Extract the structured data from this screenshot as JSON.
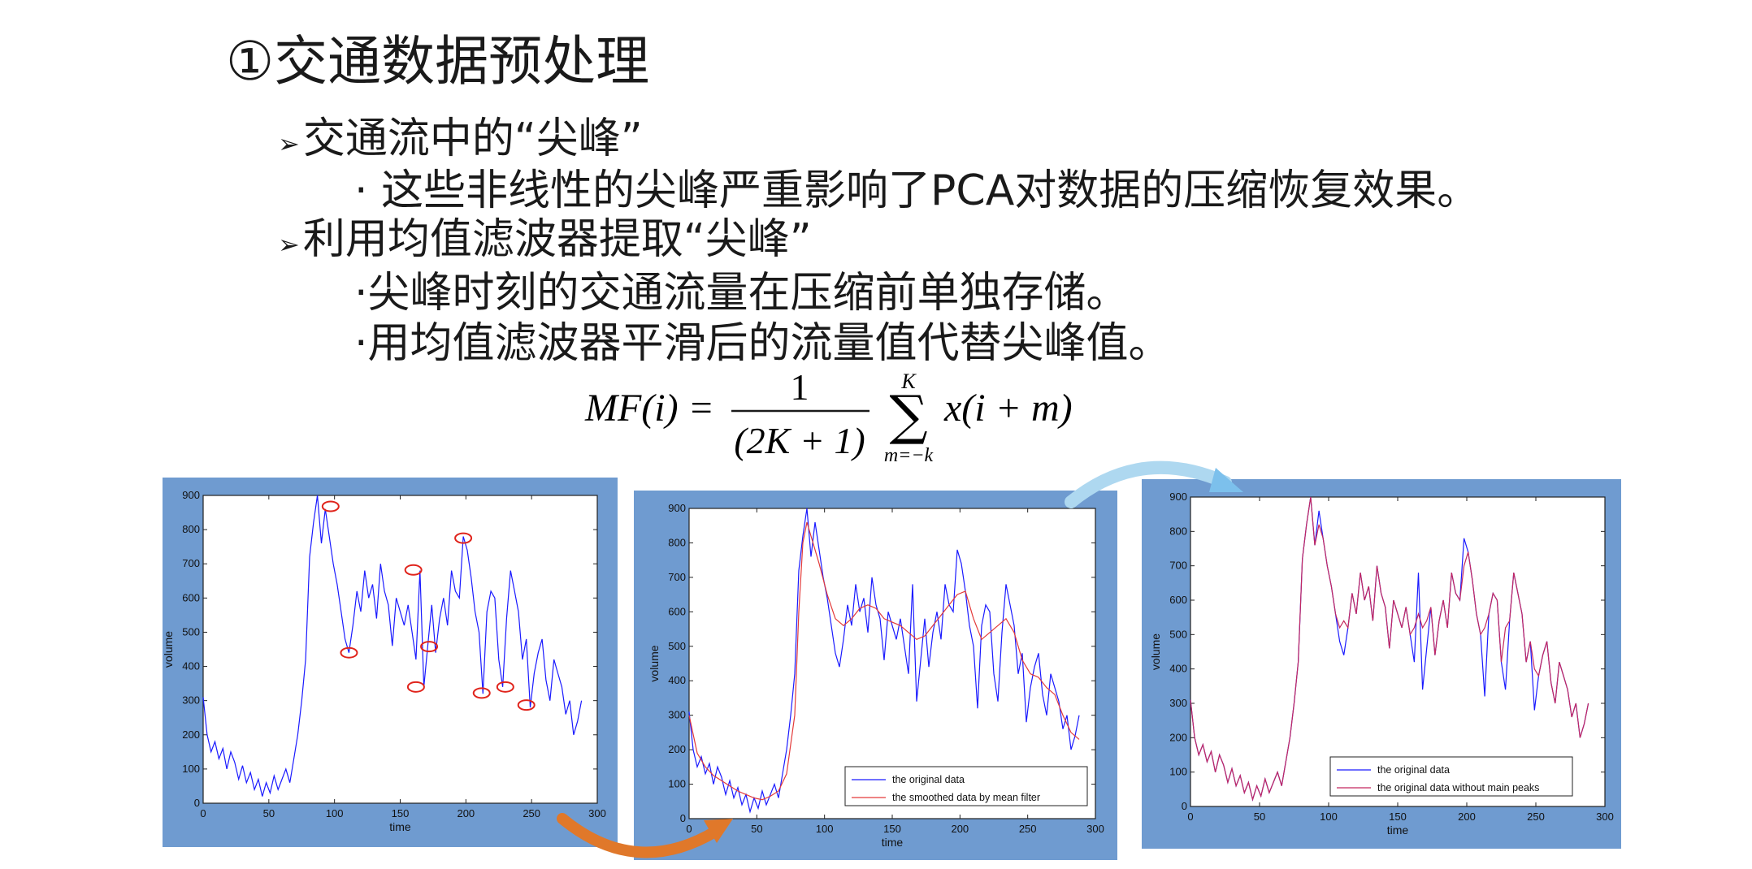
{
  "slide": {
    "heading": "①交通数据预处理",
    "bullet1": "交通流中的“尖峰”",
    "sub1": "· 这些非线性的尖峰严重影响了PCA对数据的压缩恢复效果。",
    "bullet2": "利用均值滤波器提取“尖峰”",
    "sub2": "·尖峰时刻的交通流量在压缩前单独存储。",
    "sub3": "·用均值滤波器平滑后的流量值代替尖峰值。",
    "bullet_marker": "➢"
  },
  "formula": {
    "lhs": "MF(i) =",
    "numerator": "1",
    "denominator": "(2K + 1)",
    "upper": "K",
    "lower": "m=−k",
    "sigma": "∑",
    "term": "x(i + m)"
  },
  "colors": {
    "panel_bg": "#6f9bd0",
    "original": "#1a1aff",
    "smoothed": "#e33a3a",
    "no_peaks": "#c4285f",
    "peak_marker": "#e0241c",
    "arrow_orange": "#e0782a",
    "arrow_blue": "#aed8f0"
  },
  "chart_data": [
    {
      "type": "line",
      "xlabel": "time",
      "ylabel": "volume",
      "xlim": [
        0,
        300
      ],
      "ylim": [
        0,
        900
      ],
      "xticks": [
        0,
        50,
        100,
        150,
        200,
        250,
        300
      ],
      "yticks": [
        0,
        100,
        200,
        300,
        400,
        500,
        600,
        700,
        800,
        900
      ],
      "series": [
        {
          "color": "#1a1aff",
          "x": [
            0,
            3,
            6,
            9,
            12,
            15,
            18,
            21,
            24,
            27,
            30,
            33,
            36,
            39,
            42,
            45,
            48,
            51,
            54,
            57,
            60,
            63,
            66,
            69,
            72,
            75,
            78,
            81,
            84,
            87,
            90,
            93,
            96,
            99,
            102,
            105,
            108,
            111,
            114,
            117,
            120,
            123,
            126,
            129,
            132,
            135,
            138,
            141,
            144,
            147,
            150,
            153,
            156,
            159,
            162,
            165,
            168,
            171,
            174,
            177,
            180,
            183,
            186,
            189,
            192,
            195,
            198,
            201,
            204,
            207,
            210,
            213,
            216,
            219,
            222,
            225,
            228,
            231,
            234,
            237,
            240,
            243,
            246,
            249,
            252,
            255,
            258,
            261,
            264,
            267,
            270,
            273,
            276,
            279,
            282,
            285,
            288
          ],
          "y": [
            310,
            200,
            150,
            180,
            130,
            160,
            100,
            150,
            120,
            70,
            110,
            60,
            90,
            40,
            70,
            20,
            60,
            30,
            80,
            40,
            70,
            100,
            60,
            130,
            200,
            300,
            420,
            720,
            820,
            900,
            760,
            860,
            780,
            700,
            640,
            560,
            480,
            440,
            520,
            620,
            560,
            680,
            600,
            640,
            540,
            700,
            620,
            580,
            460,
            600,
            560,
            520,
            580,
            500,
            420,
            680,
            340,
            460,
            580,
            440,
            540,
            600,
            520,
            680,
            620,
            600,
            780,
            740,
            660,
            560,
            500,
            320,
            560,
            620,
            600,
            420,
            340,
            540,
            680,
            620,
            560,
            420,
            480,
            280,
            380,
            440,
            480,
            360,
            300,
            420,
            380,
            340,
            260,
            300,
            200,
            240,
            300
          ]
        }
      ],
      "peaks": [
        {
          "x": 97,
          "y": 868
        },
        {
          "x": 111,
          "y": 440
        },
        {
          "x": 160,
          "y": 682
        },
        {
          "x": 162,
          "y": 340
        },
        {
          "x": 172,
          "y": 458
        },
        {
          "x": 198,
          "y": 775
        },
        {
          "x": 212,
          "y": 322
        },
        {
          "x": 230,
          "y": 340
        },
        {
          "x": 246,
          "y": 287
        }
      ]
    },
    {
      "type": "line",
      "xlabel": "time",
      "ylabel": "volume",
      "xlim": [
        0,
        300
      ],
      "ylim": [
        0,
        900
      ],
      "xticks": [
        0,
        50,
        100,
        150,
        200,
        250,
        300
      ],
      "yticks": [
        0,
        100,
        200,
        300,
        400,
        500,
        600,
        700,
        800,
        900
      ],
      "legend": "bottom-right",
      "series": [
        {
          "name": "the original data",
          "color": "#1a1aff",
          "x": [
            0,
            3,
            6,
            9,
            12,
            15,
            18,
            21,
            24,
            27,
            30,
            33,
            36,
            39,
            42,
            45,
            48,
            51,
            54,
            57,
            60,
            63,
            66,
            69,
            72,
            75,
            78,
            81,
            84,
            87,
            90,
            93,
            96,
            99,
            102,
            105,
            108,
            111,
            114,
            117,
            120,
            123,
            126,
            129,
            132,
            135,
            138,
            141,
            144,
            147,
            150,
            153,
            156,
            159,
            162,
            165,
            168,
            171,
            174,
            177,
            180,
            183,
            186,
            189,
            192,
            195,
            198,
            201,
            204,
            207,
            210,
            213,
            216,
            219,
            222,
            225,
            228,
            231,
            234,
            237,
            240,
            243,
            246,
            249,
            252,
            255,
            258,
            261,
            264,
            267,
            270,
            273,
            276,
            279,
            282,
            285,
            288
          ],
          "y": [
            310,
            200,
            150,
            180,
            130,
            160,
            100,
            150,
            120,
            70,
            110,
            60,
            90,
            40,
            70,
            20,
            60,
            30,
            80,
            40,
            70,
            100,
            60,
            130,
            200,
            300,
            420,
            720,
            820,
            900,
            760,
            860,
            780,
            700,
            640,
            560,
            480,
            440,
            520,
            620,
            560,
            680,
            600,
            640,
            540,
            700,
            620,
            580,
            460,
            600,
            560,
            520,
            580,
            500,
            420,
            680,
            340,
            460,
            580,
            440,
            540,
            600,
            520,
            680,
            620,
            600,
            780,
            740,
            660,
            560,
            500,
            320,
            560,
            620,
            600,
            420,
            340,
            540,
            680,
            620,
            560,
            420,
            480,
            280,
            380,
            440,
            480,
            360,
            300,
            420,
            380,
            340,
            260,
            300,
            200,
            240,
            300
          ]
        },
        {
          "name": "the smoothed data by mean filter",
          "color": "#e33a3a",
          "x": [
            0,
            6,
            12,
            18,
            24,
            30,
            36,
            42,
            48,
            54,
            60,
            66,
            72,
            78,
            81,
            84,
            87,
            90,
            96,
            102,
            108,
            114,
            120,
            126,
            132,
            138,
            144,
            150,
            156,
            162,
            168,
            174,
            180,
            186,
            192,
            198,
            204,
            210,
            216,
            222,
            228,
            234,
            240,
            246,
            252,
            258,
            264,
            270,
            276,
            282,
            288
          ],
          "y": [
            300,
            190,
            150,
            125,
            110,
            95,
            80,
            70,
            60,
            55,
            65,
            80,
            130,
            300,
            600,
            800,
            860,
            820,
            740,
            650,
            580,
            560,
            580,
            610,
            620,
            610,
            580,
            570,
            560,
            540,
            520,
            530,
            560,
            590,
            620,
            650,
            660,
            580,
            520,
            540,
            560,
            580,
            540,
            460,
            420,
            410,
            380,
            360,
            300,
            250,
            230
          ]
        }
      ]
    },
    {
      "type": "line",
      "xlabel": "time",
      "ylabel": "volume",
      "xlim": [
        0,
        300
      ],
      "ylim": [
        0,
        900
      ],
      "xticks": [
        0,
        50,
        100,
        150,
        200,
        250,
        300
      ],
      "yticks": [
        0,
        100,
        200,
        300,
        400,
        500,
        600,
        700,
        800,
        900
      ],
      "legend": "bottom-right",
      "series": [
        {
          "name": "the original data",
          "color": "#1a1aff",
          "x": [
            0,
            3,
            6,
            9,
            12,
            15,
            18,
            21,
            24,
            27,
            30,
            33,
            36,
            39,
            42,
            45,
            48,
            51,
            54,
            57,
            60,
            63,
            66,
            69,
            72,
            75,
            78,
            81,
            84,
            87,
            90,
            93,
            96,
            99,
            102,
            105,
            108,
            111,
            114,
            117,
            120,
            123,
            126,
            129,
            132,
            135,
            138,
            141,
            144,
            147,
            150,
            153,
            156,
            159,
            162,
            165,
            168,
            171,
            174,
            177,
            180,
            183,
            186,
            189,
            192,
            195,
            198,
            201,
            204,
            207,
            210,
            213,
            216,
            219,
            222,
            225,
            228,
            231,
            234,
            237,
            240,
            243,
            246,
            249,
            252,
            255,
            258,
            261,
            264,
            267,
            270,
            273,
            276,
            279,
            282,
            285,
            288
          ],
          "y": [
            310,
            200,
            150,
            180,
            130,
            160,
            100,
            150,
            120,
            70,
            110,
            60,
            90,
            40,
            70,
            20,
            60,
            30,
            80,
            40,
            70,
            100,
            60,
            130,
            200,
            300,
            420,
            720,
            820,
            900,
            760,
            860,
            780,
            700,
            640,
            560,
            480,
            440,
            520,
            620,
            560,
            680,
            600,
            640,
            540,
            700,
            620,
            580,
            460,
            600,
            560,
            520,
            580,
            500,
            420,
            680,
            340,
            460,
            580,
            440,
            540,
            600,
            520,
            680,
            620,
            600,
            780,
            740,
            660,
            560,
            500,
            320,
            560,
            620,
            600,
            420,
            340,
            540,
            680,
            620,
            560,
            420,
            480,
            280,
            380,
            440,
            480,
            360,
            300,
            420,
            380,
            340,
            260,
            300,
            200,
            240,
            300
          ]
        },
        {
          "name": "the original data without main peaks",
          "color": "#c4285f",
          "x": [
            0,
            3,
            6,
            9,
            12,
            15,
            18,
            21,
            24,
            27,
            30,
            33,
            36,
            39,
            42,
            45,
            48,
            51,
            54,
            57,
            60,
            63,
            66,
            69,
            72,
            75,
            78,
            81,
            84,
            87,
            90,
            93,
            96,
            99,
            102,
            105,
            108,
            111,
            114,
            117,
            120,
            123,
            126,
            129,
            132,
            135,
            138,
            141,
            144,
            147,
            150,
            153,
            156,
            159,
            162,
            165,
            168,
            171,
            174,
            177,
            180,
            183,
            186,
            189,
            192,
            195,
            198,
            201,
            204,
            207,
            210,
            213,
            216,
            219,
            222,
            225,
            228,
            231,
            234,
            237,
            240,
            243,
            246,
            249,
            252,
            255,
            258,
            261,
            264,
            267,
            270,
            273,
            276,
            279,
            282,
            285,
            288
          ],
          "y": [
            310,
            200,
            150,
            180,
            130,
            160,
            100,
            150,
            120,
            70,
            110,
            60,
            90,
            40,
            70,
            20,
            60,
            30,
            80,
            40,
            70,
            100,
            60,
            130,
            200,
            300,
            420,
            720,
            820,
            900,
            760,
            820,
            780,
            700,
            640,
            560,
            520,
            540,
            520,
            620,
            560,
            680,
            600,
            640,
            540,
            700,
            620,
            580,
            460,
            600,
            560,
            520,
            580,
            500,
            520,
            560,
            520,
            540,
            580,
            440,
            540,
            600,
            520,
            680,
            620,
            600,
            700,
            740,
            660,
            560,
            500,
            520,
            560,
            620,
            600,
            420,
            520,
            540,
            680,
            620,
            560,
            420,
            480,
            400,
            380,
            440,
            480,
            360,
            300,
            420,
            380,
            340,
            260,
            300,
            200,
            240,
            300
          ]
        }
      ]
    }
  ]
}
